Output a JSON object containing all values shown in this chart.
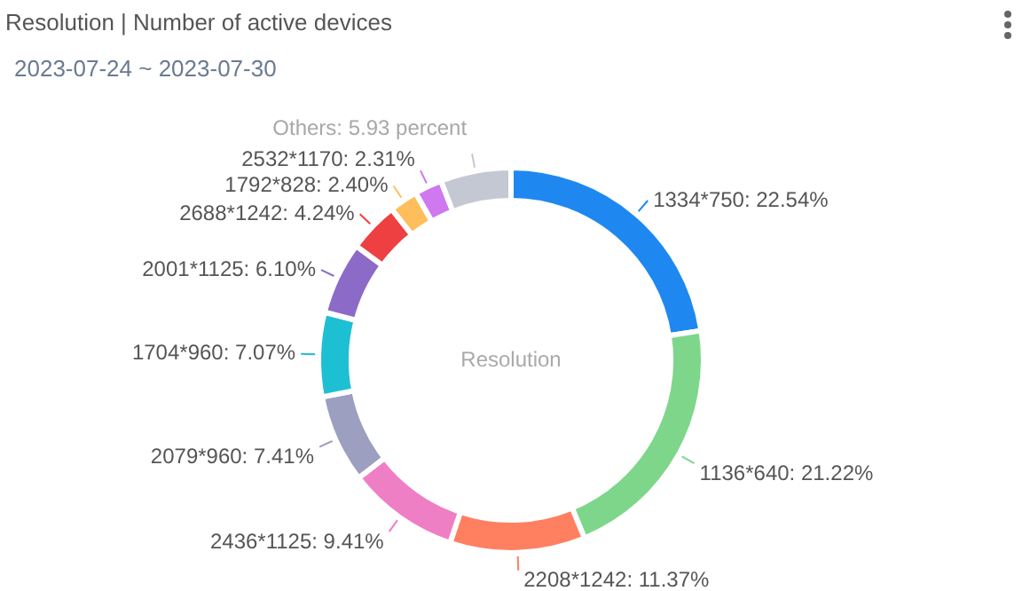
{
  "chart_data": {
    "type": "donut",
    "title": "Resolution | Number of active devices",
    "subtitle": "2023-07-24 ~ 2023-07-30",
    "categories": [
      "1334*750",
      "1136*640",
      "2208*1242",
      "2436*1125",
      "2079*960",
      "1704*960",
      "2001*1125",
      "2688*1242",
      "1792*828",
      "2532*1170",
      "Others"
    ],
    "values": [
      22.54,
      21.22,
      11.37,
      9.41,
      7.41,
      7.07,
      6.1,
      4.24,
      2.4,
      2.31,
      5.93
    ],
    "colors": [
      "#1e88f0",
      "#7ed68b",
      "#ff7f61",
      "#ef7fc4",
      "#9d9fc0",
      "#1dbfd3",
      "#8c6ac8",
      "#ee4040",
      "#ffbe5c",
      "#cf78f0",
      "#c4c8d2"
    ],
    "value_labels": [
      "22.54%",
      "21.22%",
      "11.37%",
      "9.41%",
      "7.41%",
      "7.07%",
      "6.10%",
      "4.24%",
      "2.40%",
      "2.31%",
      "5.93 percent"
    ],
    "annotations": [
      "Resolution"
    ],
    "legend": false
  }
}
